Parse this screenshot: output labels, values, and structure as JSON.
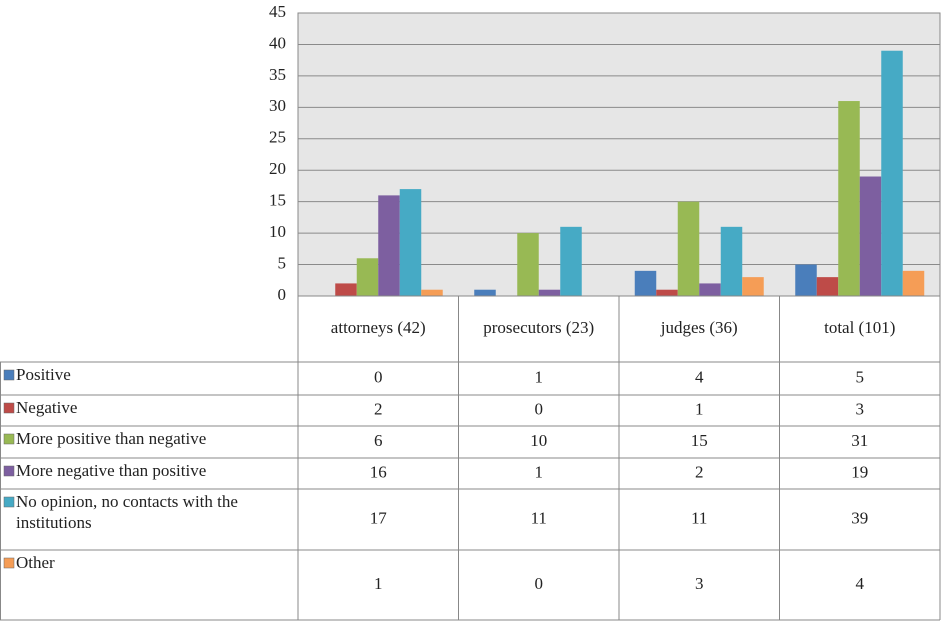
{
  "chart_data": {
    "type": "bar",
    "categories": [
      "attorneys (42)",
      "prosecutors (23)",
      "judges (36)",
      "total (101)"
    ],
    "series": [
      {
        "name": "Positive",
        "color": "#4a7ebb",
        "values": [
          0,
          1,
          4,
          5
        ]
      },
      {
        "name": "Negative",
        "color": "#be4b48",
        "values": [
          2,
          0,
          1,
          3
        ]
      },
      {
        "name": "More positive than negative",
        "color": "#98b954",
        "values": [
          6,
          10,
          15,
          31
        ]
      },
      {
        "name": "More negative than positive",
        "color": "#7d5fa0",
        "values": [
          16,
          1,
          2,
          19
        ]
      },
      {
        "name": "No opinion, no contacts with the institutions",
        "color": "#46aac5",
        "values": [
          17,
          11,
          11,
          39
        ]
      },
      {
        "name": "Other",
        "color": "#f59d56",
        "values": [
          1,
          0,
          3,
          4
        ]
      }
    ],
    "ylim": [
      0,
      45
    ],
    "yticks": [
      0,
      5,
      10,
      15,
      20,
      25,
      30,
      35,
      40,
      45
    ],
    "grid": true
  }
}
